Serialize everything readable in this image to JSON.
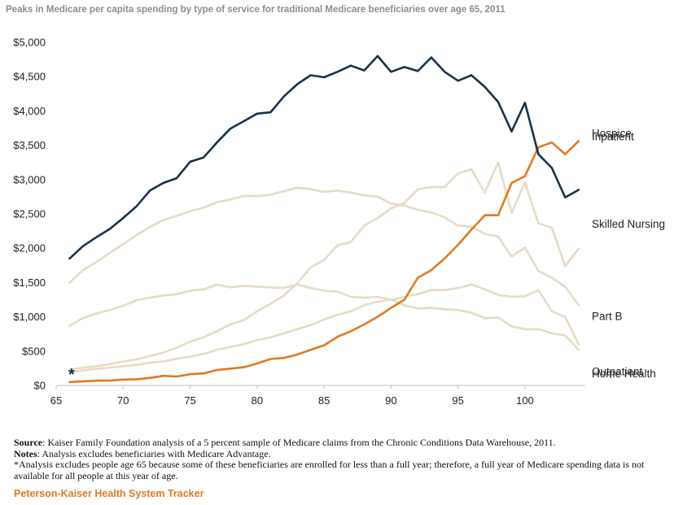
{
  "chart_data": {
    "type": "line",
    "title": "Peaks in Medicare per capita spending by type of service for traditional Medicare beneficiaries over age 65, 2011",
    "xlabel": "",
    "ylabel": "",
    "xlim": [
      65,
      104.5
    ],
    "ylim": [
      0,
      5000
    ],
    "x_ticks": [
      65,
      70,
      75,
      80,
      85,
      90,
      95,
      100
    ],
    "y_ticks": [
      0,
      500,
      1000,
      1500,
      2000,
      2500,
      3000,
      3500,
      4000,
      4500,
      5000
    ],
    "y_tick_labels": [
      "$0",
      "$500",
      "$1,000",
      "$1,500",
      "$2,000",
      "$2,500",
      "$3,000",
      "$3,500",
      "$4,000",
      "$4,500",
      "$5,000"
    ],
    "annotation": "*",
    "x": [
      66,
      67,
      68,
      69,
      70,
      71,
      72,
      73,
      74,
      75,
      76,
      77,
      78,
      79,
      80,
      81,
      82,
      83,
      84,
      85,
      86,
      87,
      88,
      89,
      90,
      91,
      92,
      93,
      94,
      95,
      96,
      97,
      98,
      99,
      100,
      101,
      102,
      103,
      104
    ],
    "series": [
      {
        "name": "Hospice",
        "color": "#e07a22",
        "emphasis": true,
        "values": [
          50,
          60,
          70,
          70,
          85,
          90,
          110,
          140,
          130,
          165,
          175,
          225,
          245,
          265,
          320,
          385,
          400,
          450,
          520,
          585,
          710,
          790,
          890,
          1000,
          1130,
          1250,
          1570,
          1680,
          1850,
          2050,
          2270,
          2480,
          2480,
          2950,
          3050,
          3470,
          3540,
          3370,
          3560
        ]
      },
      {
        "name": "Inpatient",
        "color": "#17324f",
        "emphasis": true,
        "values": [
          1850,
          2030,
          2160,
          2280,
          2440,
          2610,
          2840,
          2950,
          3020,
          3260,
          3320,
          3540,
          3740,
          3850,
          3960,
          3980,
          4210,
          4390,
          4520,
          4490,
          4570,
          4660,
          4590,
          4800,
          4570,
          4640,
          4580,
          4780,
          4570,
          4440,
          4520,
          4350,
          4130,
          3700,
          4120,
          3370,
          3170,
          2740,
          2850
        ]
      },
      {
        "name": "Skilled Nursing",
        "color": "#e6dcc6",
        "emphasis": false,
        "values": [
          230,
          260,
          280,
          310,
          350,
          380,
          430,
          480,
          550,
          640,
          700,
          790,
          890,
          950,
          1080,
          1190,
          1310,
          1490,
          1720,
          1830,
          2040,
          2090,
          2330,
          2440,
          2580,
          2660,
          2860,
          2890,
          2890,
          3090,
          3150,
          2810,
          3250,
          2510,
          2960,
          2360,
          2300,
          1740,
          1990
        ]
      },
      {
        "name": "Part B",
        "color": "#e6dcc6",
        "emphasis": false,
        "values": [
          1500,
          1680,
          1800,
          1930,
          2060,
          2190,
          2310,
          2410,
          2470,
          2540,
          2590,
          2670,
          2710,
          2760,
          2760,
          2780,
          2830,
          2880,
          2860,
          2820,
          2840,
          2810,
          2770,
          2750,
          2650,
          2620,
          2560,
          2520,
          2450,
          2330,
          2310,
          2210,
          2170,
          1880,
          2010,
          1670,
          1570,
          1440,
          1170
        ]
      },
      {
        "name": "Home Health",
        "color": "#e6dcc6",
        "emphasis": false,
        "values": [
          870,
          980,
          1050,
          1100,
          1160,
          1240,
          1280,
          1310,
          1330,
          1380,
          1400,
          1470,
          1430,
          1450,
          1440,
          1430,
          1420,
          1470,
          1420,
          1380,
          1370,
          1290,
          1280,
          1290,
          1250,
          1170,
          1120,
          1130,
          1110,
          1100,
          1060,
          980,
          990,
          860,
          820,
          820,
          760,
          730,
          520
        ]
      },
      {
        "name": "Outpatient",
        "color": "#e6dcc6",
        "emphasis": false,
        "values": [
          190,
          220,
          240,
          260,
          280,
          300,
          330,
          350,
          390,
          420,
          460,
          520,
          560,
          600,
          660,
          700,
          760,
          820,
          880,
          960,
          1030,
          1080,
          1170,
          1220,
          1250,
          1290,
          1330,
          1390,
          1390,
          1420,
          1470,
          1400,
          1320,
          1290,
          1300,
          1390,
          1080,
          1000,
          600
        ]
      }
    ]
  },
  "footnotes": {
    "source_label": "Source",
    "source_text": ": Kaiser Family Foundation analysis of a 5 percent sample of Medicare claims from the Chronic Conditions Data Warehouse, 2011.",
    "notes_label": "Notes",
    "notes_text": ": Analysis excludes beneficiaries with Medicare Advantage.",
    "asterisk_note": "*Analysis excludes people age 65 because some of these beneficiaries are enrolled for less than a full year; therefore, a full year of Medicare spending data is not available for all people at this year of age."
  },
  "brand": "Peterson-Kaiser Health System Tracker"
}
